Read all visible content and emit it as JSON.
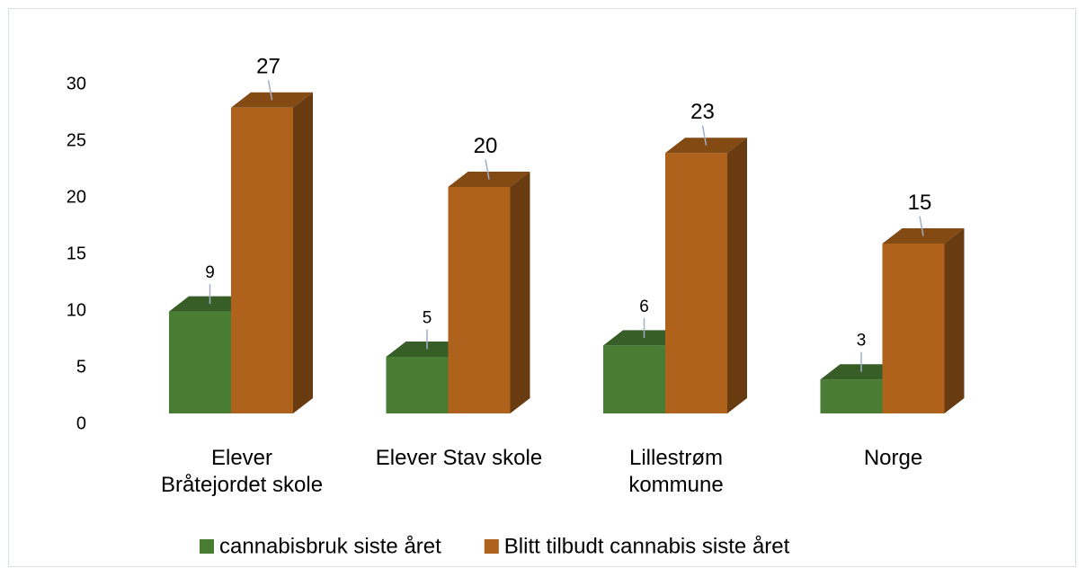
{
  "chart_data": {
    "type": "bar3d",
    "categories": [
      "Elever\nBråtejordet skole",
      "Elever Stav skole",
      "Lillestrøm\nkommune",
      "Norge"
    ],
    "series": [
      {
        "name": "cannabisbruk siste året",
        "color": "#4a7d34",
        "values": [
          9,
          5,
          6,
          3
        ]
      },
      {
        "name": "Blitt tilbudt cannabis siste året",
        "color": "#ae621b",
        "values": [
          27,
          20,
          23,
          15
        ]
      }
    ],
    "ylim": [
      0,
      30
    ],
    "yticks": [
      0,
      5,
      10,
      15,
      20,
      25,
      30
    ],
    "grid": false,
    "legend": "bottom"
  }
}
